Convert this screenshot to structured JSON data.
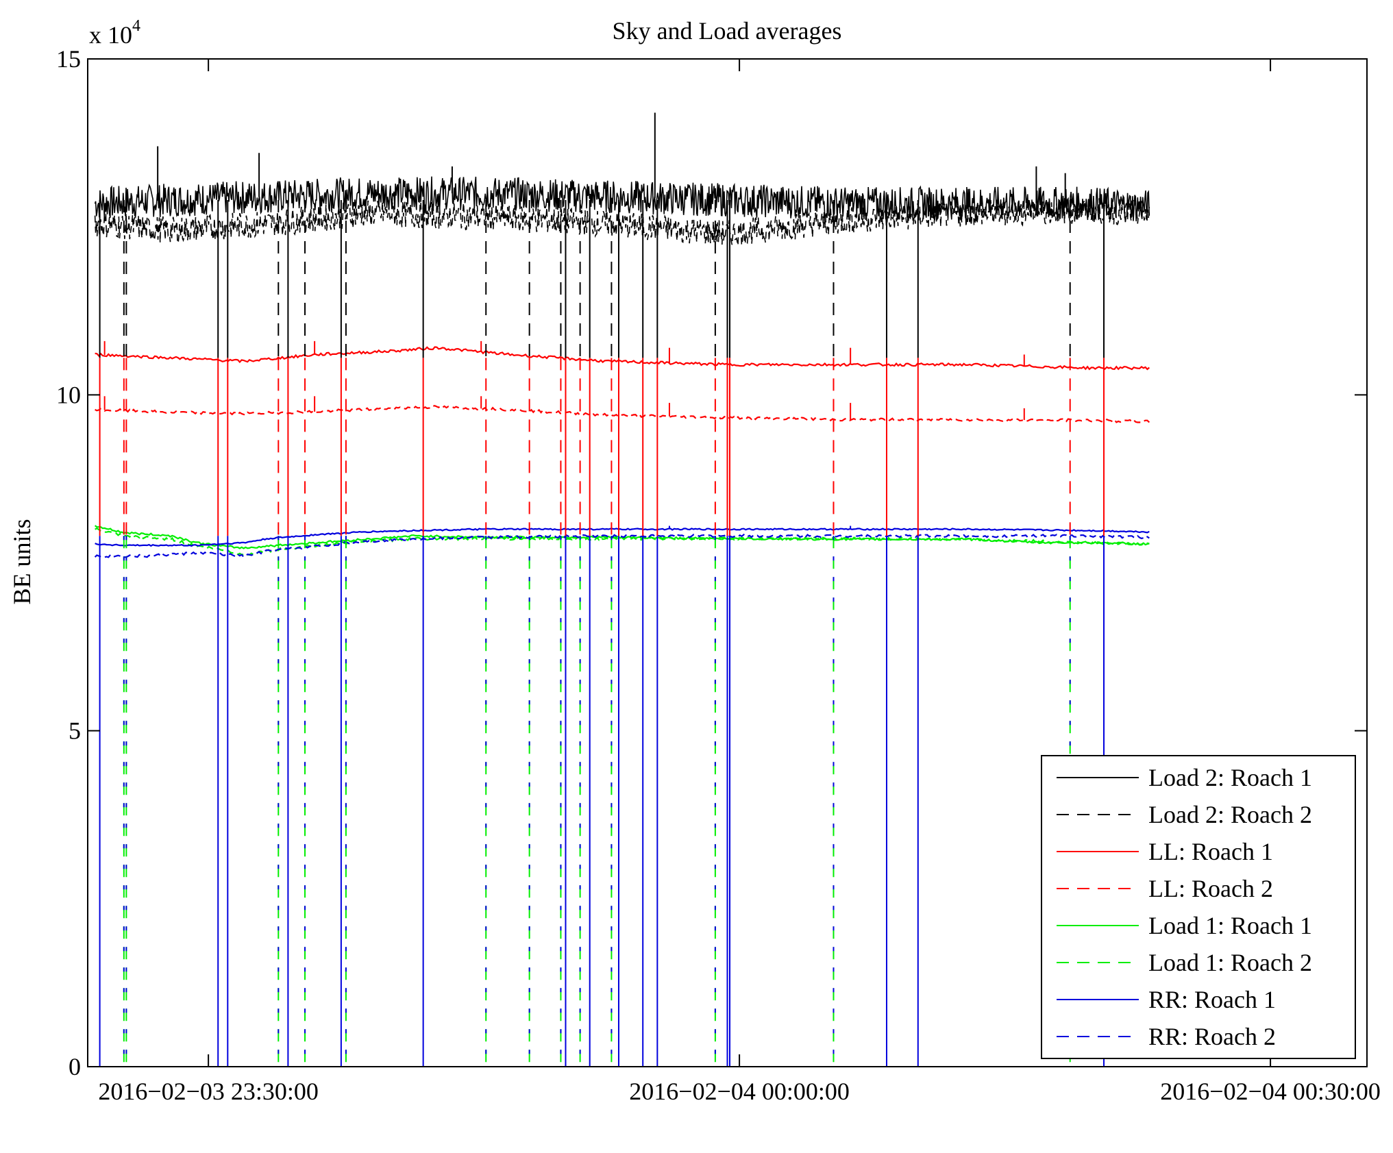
{
  "chart_data": {
    "type": "line",
    "title": "Sky and Load averages",
    "xlabel": "",
    "ylabel": "BE units",
    "y_multiplier": "x 10",
    "y_multiplier_exp": "4",
    "x_range_minutes": [
      -1.5,
      51.5
    ],
    "xticks": [
      {
        "minute": 3.5,
        "label": "2016−02−03 23:30:00"
      },
      {
        "minute": 25.5,
        "label": "2016−02−04 00:00:00"
      },
      {
        "minute": 47.5,
        "label": "2016−02−04 00:30:00"
      }
    ],
    "yticks": [
      {
        "value": 0,
        "label": "0"
      },
      {
        "value": 5,
        "label": "5"
      },
      {
        "value": 10,
        "label": "10"
      },
      {
        "value": 15,
        "label": "15"
      }
    ],
    "ylim": [
      0,
      15
    ],
    "grid": false,
    "legend_position": "bottom-right",
    "series": [
      {
        "name": "Load 2: Roach 1",
        "color": "#000000",
        "dash": "solid",
        "points": [
          [
            -1.2,
            12.85
          ],
          [
            2,
            12.9
          ],
          [
            6,
            12.95
          ],
          [
            10,
            13.0
          ],
          [
            15,
            13.0
          ],
          [
            20,
            12.95
          ],
          [
            25,
            12.9
          ],
          [
            30,
            12.85
          ],
          [
            35,
            12.85
          ],
          [
            40,
            12.85
          ],
          [
            42.5,
            12.8
          ]
        ],
        "noise": 0.25,
        "spikes": [
          [
            1.4,
            13.7
          ],
          [
            5.6,
            13.6
          ],
          [
            13.6,
            13.4
          ],
          [
            22,
            14.2
          ],
          [
            37.8,
            13.4
          ],
          [
            39,
            13.3
          ]
        ]
      },
      {
        "name": "Load 2: Roach 2",
        "color": "#000000",
        "dash": "dashed",
        "points": [
          [
            -1.2,
            12.55
          ],
          [
            2,
            12.45
          ],
          [
            6,
            12.55
          ],
          [
            10,
            12.7
          ],
          [
            15,
            12.65
          ],
          [
            20,
            12.55
          ],
          [
            25,
            12.4
          ],
          [
            30,
            12.6
          ],
          [
            35,
            12.7
          ],
          [
            40,
            12.75
          ],
          [
            42.5,
            12.7
          ]
        ],
        "noise": 0.2,
        "spikes": []
      },
      {
        "name": "LL: Roach 1",
        "color": "#ff0000",
        "dash": "solid",
        "points": [
          [
            -1.2,
            10.6
          ],
          [
            2,
            10.55
          ],
          [
            5,
            10.5
          ],
          [
            8,
            10.6
          ],
          [
            11,
            10.65
          ],
          [
            13,
            10.7
          ],
          [
            16,
            10.6
          ],
          [
            20,
            10.5
          ],
          [
            25,
            10.45
          ],
          [
            30,
            10.45
          ],
          [
            35,
            10.45
          ],
          [
            40,
            10.4
          ],
          [
            42.5,
            10.4
          ]
        ],
        "noise": 0.02,
        "spikes": [
          [
            -0.8,
            10.8
          ],
          [
            7.9,
            10.8
          ],
          [
            14.8,
            10.8
          ],
          [
            22.6,
            10.7
          ],
          [
            30.1,
            10.7
          ],
          [
            37.3,
            10.6
          ]
        ]
      },
      {
        "name": "LL: Roach 2",
        "color": "#ff0000",
        "dash": "dashed",
        "points": [
          [
            -1.2,
            9.78
          ],
          [
            2,
            9.74
          ],
          [
            5,
            9.72
          ],
          [
            8,
            9.75
          ],
          [
            11,
            9.8
          ],
          [
            13,
            9.82
          ],
          [
            16,
            9.78
          ],
          [
            20,
            9.7
          ],
          [
            25,
            9.66
          ],
          [
            30,
            9.63
          ],
          [
            35,
            9.63
          ],
          [
            40,
            9.62
          ],
          [
            42.5,
            9.6
          ]
        ],
        "noise": 0.02,
        "spikes": [
          [
            -0.8,
            9.98
          ],
          [
            7.9,
            9.98
          ],
          [
            14.8,
            9.98
          ],
          [
            22.6,
            9.88
          ],
          [
            30.1,
            9.88
          ],
          [
            37.3,
            9.8
          ]
        ]
      },
      {
        "name": "Load 1: Roach 1",
        "color": "#00ee00",
        "dash": "solid",
        "points": [
          [
            -1.2,
            8.05
          ],
          [
            0,
            7.95
          ],
          [
            2,
            7.9
          ],
          [
            3,
            7.8
          ],
          [
            4,
            7.75
          ],
          [
            5,
            7.72
          ],
          [
            6,
            7.75
          ],
          [
            8,
            7.8
          ],
          [
            10,
            7.85
          ],
          [
            12,
            7.9
          ],
          [
            15,
            7.88
          ],
          [
            20,
            7.88
          ],
          [
            25,
            7.86
          ],
          [
            30,
            7.85
          ],
          [
            35,
            7.85
          ],
          [
            38,
            7.8
          ],
          [
            40,
            7.8
          ],
          [
            42.5,
            7.78
          ]
        ],
        "noise": 0.015,
        "spikes": []
      },
      {
        "name": "Load 1: Roach 2",
        "color": "#00ee00",
        "dash": "dashed",
        "points": [
          [
            -1.2,
            8.0
          ],
          [
            0,
            7.9
          ],
          [
            2,
            7.85
          ],
          [
            3,
            7.75
          ],
          [
            4,
            7.7
          ],
          [
            5,
            7.62
          ],
          [
            6,
            7.68
          ],
          [
            8,
            7.76
          ],
          [
            10,
            7.82
          ],
          [
            12,
            7.86
          ],
          [
            15,
            7.86
          ],
          [
            20,
            7.86
          ],
          [
            25,
            7.86
          ],
          [
            30,
            7.86
          ],
          [
            35,
            7.85
          ],
          [
            38,
            7.82
          ],
          [
            40,
            7.8
          ],
          [
            42.5,
            7.78
          ]
        ],
        "noise": 0.02,
        "spikes": []
      },
      {
        "name": "RR: Roach 1",
        "color": "#0000dd",
        "dash": "solid",
        "points": [
          [
            -1.2,
            7.78
          ],
          [
            0,
            7.76
          ],
          [
            3,
            7.76
          ],
          [
            4,
            7.78
          ],
          [
            5,
            7.8
          ],
          [
            6,
            7.86
          ],
          [
            8,
            7.92
          ],
          [
            10,
            7.96
          ],
          [
            12,
            7.98
          ],
          [
            15,
            8.0
          ],
          [
            20,
            8.0
          ],
          [
            25,
            8.0
          ],
          [
            30,
            8.0
          ],
          [
            35,
            8.0
          ],
          [
            40,
            7.98
          ],
          [
            42.5,
            7.96
          ]
        ],
        "noise": 0.01,
        "spikes": [
          [
            22.6,
            8.05
          ],
          [
            30.1,
            8.05
          ]
        ]
      },
      {
        "name": "RR: Roach 2",
        "color": "#0000dd",
        "dash": "dashed",
        "points": [
          [
            -1.2,
            7.6
          ],
          [
            1,
            7.6
          ],
          [
            3,
            7.65
          ],
          [
            5,
            7.6
          ],
          [
            6,
            7.68
          ],
          [
            8,
            7.75
          ],
          [
            10,
            7.82
          ],
          [
            12,
            7.86
          ],
          [
            15,
            7.88
          ],
          [
            20,
            7.9
          ],
          [
            25,
            7.9
          ],
          [
            30,
            7.9
          ],
          [
            35,
            7.9
          ],
          [
            40,
            7.9
          ],
          [
            42.5,
            7.88
          ]
        ],
        "noise": 0.02,
        "spikes": []
      }
    ],
    "dropouts_solid": [
      -1.0,
      3.9,
      4.3,
      6.8,
      9.0,
      12.4,
      18.3,
      19.3,
      20.5,
      21.5,
      22.1,
      25.0,
      25.1,
      31.6,
      32.9,
      40.6
    ],
    "dropouts_dashed": [
      0.0,
      0.1,
      6.4,
      7.5,
      9.2,
      15.0,
      16.8,
      18.1,
      18.9,
      20.2,
      24.5,
      29.4,
      39.2
    ]
  }
}
